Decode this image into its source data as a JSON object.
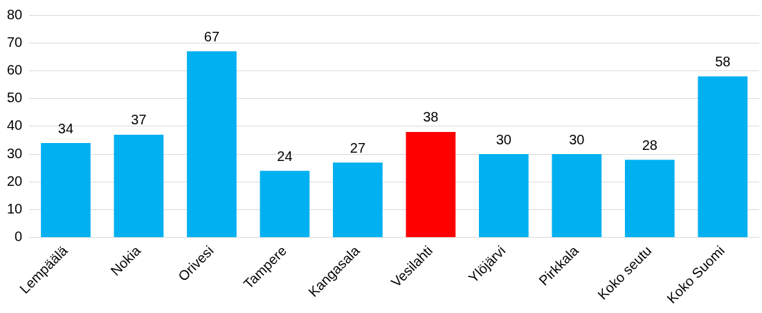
{
  "chart_data": {
    "type": "bar",
    "categories": [
      "Lempäälä",
      "Nokia",
      "Orivesi",
      "Tampere",
      "Kangasala",
      "Vesilahti",
      "Ylöjärvi",
      "Pirkkala",
      "Koko seutu",
      "Koko Suomi"
    ],
    "values": [
      34,
      37,
      67,
      24,
      27,
      38,
      30,
      30,
      28,
      58
    ],
    "colors": [
      "#00b0f0",
      "#00b0f0",
      "#00b0f0",
      "#00b0f0",
      "#00b0f0",
      "#ff0000",
      "#00b0f0",
      "#00b0f0",
      "#00b0f0",
      "#00b0f0"
    ],
    "ylim": [
      0,
      80
    ],
    "yticks": [
      0,
      10,
      20,
      30,
      40,
      50,
      60,
      70,
      80
    ],
    "grid": "y",
    "data_labels": true,
    "legend": false
  }
}
